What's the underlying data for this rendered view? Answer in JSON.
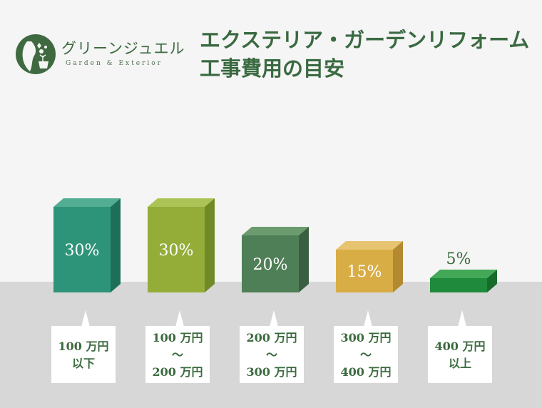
{
  "brand": {
    "name": "グリーンジュエル",
    "sub": "Garden & Exterior"
  },
  "title": {
    "line1": "エクステリア・ガーデンリフォーム",
    "line2": "工事費用の目安"
  },
  "chart_data": {
    "type": "bar",
    "title": "エクステリア・ガーデンリフォーム 工事費用の目安",
    "categories": [
      [
        "100 万円",
        "以下"
      ],
      [
        "100 万円",
        "〜",
        "200 万円"
      ],
      [
        "200 万円",
        "〜",
        "300 万円"
      ],
      [
        "300 万円",
        "〜",
        "400 万円"
      ],
      [
        "400 万円",
        "以上"
      ]
    ],
    "values": [
      30,
      30,
      20,
      15,
      5
    ],
    "value_labels": [
      "30%",
      "30%",
      "20%",
      "15%",
      "5%"
    ],
    "unit": "%",
    "ylim": [
      0,
      30
    ],
    "colors": {
      "front": [
        "#2e9479",
        "#93ad38",
        "#4f7f57",
        "#d9ad45",
        "#1f8a3b"
      ],
      "top": [
        "#52ad92",
        "#acc457",
        "#6b9b6e",
        "#e6c471",
        "#43a858"
      ],
      "side": [
        "#1d6f5a",
        "#6f8a26",
        "#3a5f40",
        "#b38a30",
        "#166b2b"
      ]
    },
    "label_color": "#3b6a3e",
    "grid": false,
    "legend": "none"
  }
}
